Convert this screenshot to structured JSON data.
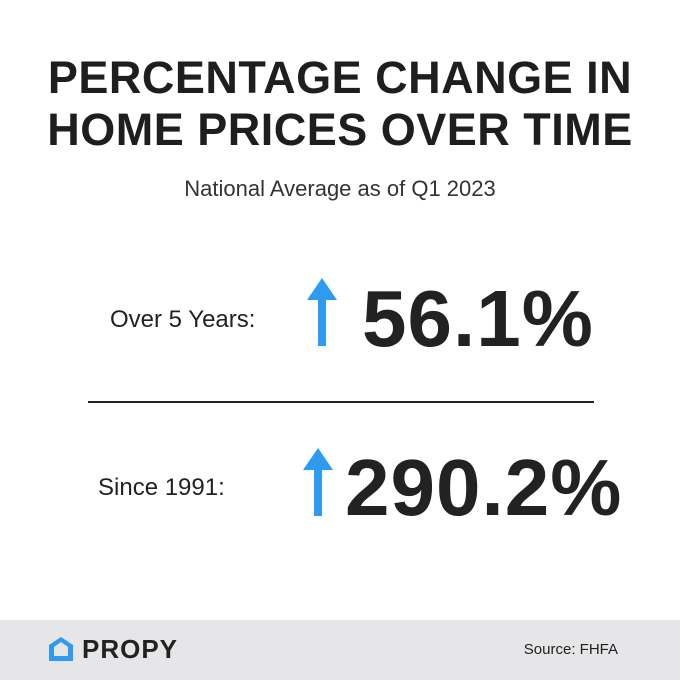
{
  "title": "PERCENTAGE CHANGE IN HOME PRICES OVER TIME",
  "subtitle": "National Average as of Q1 2023",
  "stats": [
    {
      "label": "Over 5 Years:",
      "value": "56.1%"
    },
    {
      "label": "Since 1991:",
      "value": "290.2%"
    }
  ],
  "footer": {
    "brand": "PROPY",
    "source": "Source: FHFA"
  }
}
